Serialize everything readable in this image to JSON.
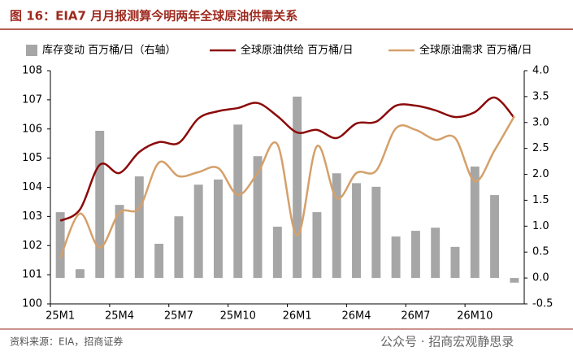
{
  "chart_data": {
    "type": "bar",
    "title": "图 16：EIA7 月月报测算今明两年全球原油供需关系",
    "source": "资料来源：EIA，招商证券",
    "watermark": "公众号 · 招商宏观静思录",
    "categories": [
      "25M1",
      null,
      null,
      "25M4",
      null,
      null,
      "25M7",
      null,
      null,
      "25M10",
      null,
      null,
      "26M1",
      null,
      null,
      "26M4",
      null,
      null,
      "26M7",
      null,
      null,
      "26M10",
      null,
      null
    ],
    "ylim": [
      100,
      108
    ],
    "yticks": [
      100,
      101,
      102,
      103,
      104,
      105,
      106,
      107,
      108
    ],
    "y2lim": [
      -0.5,
      4.0
    ],
    "y2ticks": [
      -0.5,
      {
        "value": 0,
        "label": "0.0"
      },
      0.5,
      {
        "value": 1,
        "label": "1.0"
      },
      1.5,
      {
        "value": 2,
        "label": "2.0"
      },
      2.5,
      {
        "value": 3,
        "label": "3.0"
      },
      3.5,
      {
        "value": 4,
        "label": "4.0"
      }
    ],
    "series": [
      {
        "name": "库存变动 百万桶/日（右轴）",
        "type": "bar",
        "axis": "y2",
        "color": "#a6a6a6",
        "values": [
          1.27,
          0.17,
          2.84,
          1.41,
          1.96,
          0.66,
          1.19,
          1.8,
          1.9,
          2.96,
          2.35,
          0.99,
          3.5,
          1.27,
          2.02,
          1.83,
          1.76,
          0.8,
          0.91,
          0.97,
          0.6,
          2.15,
          1.6,
          -0.09
        ]
      },
      {
        "name": "全球原油供给 百万桶/日",
        "type": "line",
        "color": "#8b0a0a",
        "values": [
          102.85,
          103.24,
          104.77,
          104.49,
          105.21,
          105.55,
          105.52,
          106.36,
          106.61,
          106.72,
          106.89,
          106.44,
          105.88,
          105.97,
          105.69,
          106.19,
          106.25,
          106.8,
          106.8,
          106.64,
          106.41,
          106.58,
          107.08,
          106.38
        ]
      },
      {
        "name": "全球原油需求 百万桶/日",
        "type": "line",
        "color": "#d4a06a",
        "values": [
          101.57,
          103.1,
          101.93,
          103.13,
          103.29,
          104.85,
          104.38,
          104.52,
          104.66,
          103.74,
          104.49,
          105.47,
          102.35,
          105.41,
          103.63,
          104.49,
          104.57,
          106.02,
          105.97,
          105.63,
          105.69,
          104.21,
          105.27,
          106.44
        ]
      }
    ]
  }
}
